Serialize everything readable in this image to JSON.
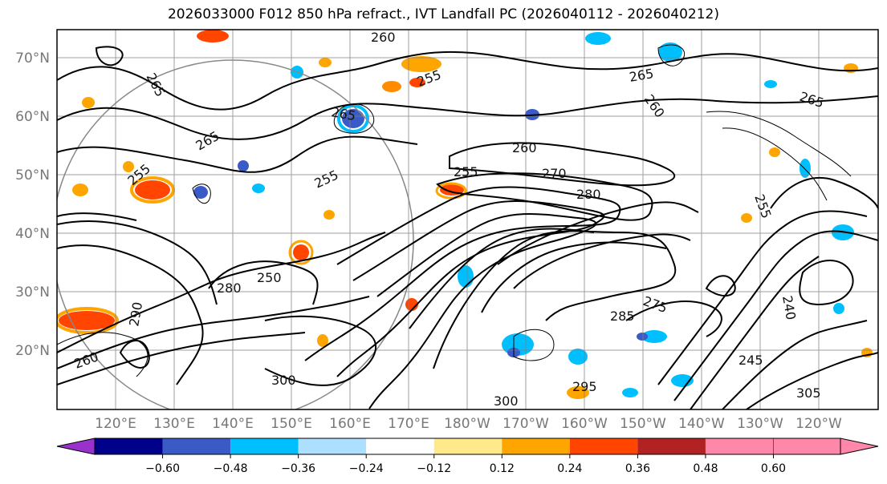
{
  "title": "2026033000 F012 850 hPa refract., IVT Landfall PC (2026040112 - 2026040212)",
  "lat_labels": [
    "70°N",
    "60°N",
    "50°N",
    "40°N",
    "30°N",
    "20°N"
  ],
  "lon_labels": [
    "120°E",
    "130°E",
    "140°E",
    "150°E",
    "160°E",
    "170°E",
    "180°W",
    "170°W",
    "160°W",
    "150°W",
    "140°W",
    "130°W",
    "120°W"
  ],
  "colorbar": {
    "colors": [
      "#9932CC",
      "#00008B",
      "#3A5BC7",
      "#00BFFF",
      "#ADDFFF",
      "#FFFFFF",
      "#FFE98A",
      "#FFA500",
      "#FF4500",
      "#B22222",
      "#FF88AA"
    ],
    "tick_labels": [
      "−0.60",
      "−0.48",
      "−0.36",
      "−0.24",
      "−0.12",
      "0.12",
      "0.24",
      "0.36",
      "0.48",
      "0.60"
    ]
  },
  "contour_labels": [
    "260",
    "265",
    "265",
    "265",
    "260",
    "255",
    "255",
    "260",
    "265",
    "255",
    "270",
    "280",
    "275",
    "250",
    "240",
    "245",
    "265",
    "255",
    "300",
    "305",
    "300",
    "295",
    "290",
    "260",
    "280",
    "255",
    "285"
  ],
  "colors": {
    "frame": "#000000",
    "grid": "#808080",
    "contour": "#000000",
    "label_gray": "#777777"
  }
}
